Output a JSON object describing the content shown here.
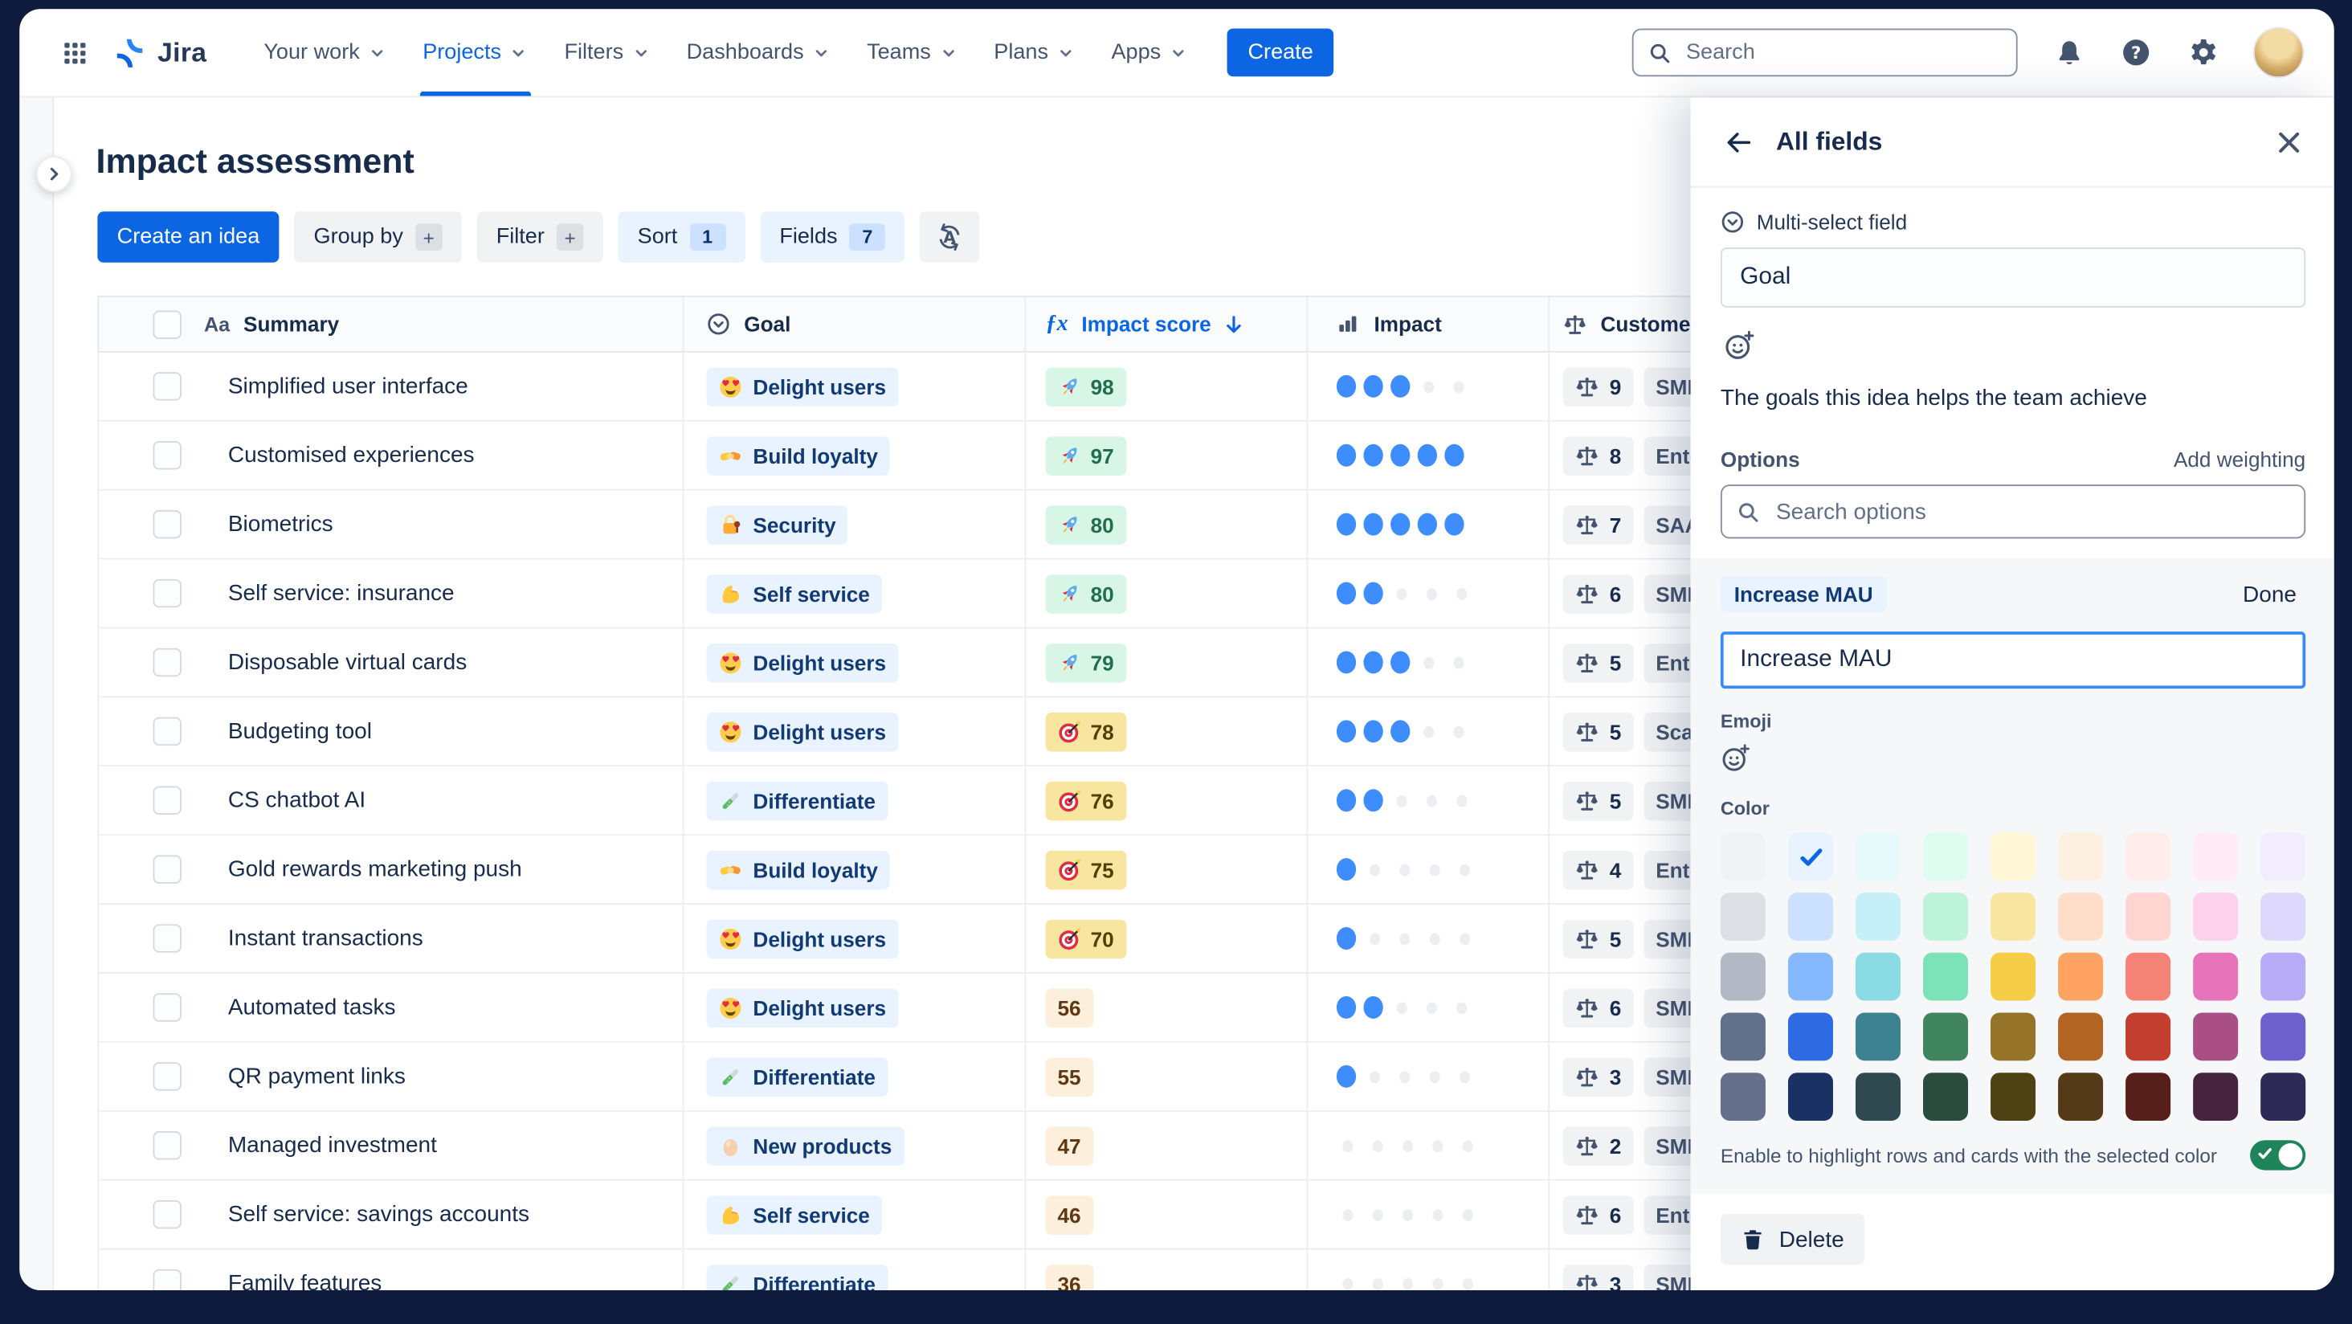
{
  "nav": {
    "logo_text": "Jira",
    "items": [
      {
        "label": "Your work"
      },
      {
        "label": "Projects",
        "active": true
      },
      {
        "label": "Filters"
      },
      {
        "label": "Dashboards"
      },
      {
        "label": "Teams"
      },
      {
        "label": "Plans"
      },
      {
        "label": "Apps"
      }
    ],
    "create_label": "Create",
    "search_placeholder": "Search"
  },
  "page_title": "Impact assessment",
  "toolbar": {
    "create_idea": "Create an idea",
    "group_by": "Group by",
    "filter": "Filter",
    "sort": "Sort",
    "sort_count": "1",
    "fields": "Fields",
    "fields_count": "7"
  },
  "table": {
    "columns": [
      {
        "label": "Summary",
        "icon": "aa-icon"
      },
      {
        "label": "Goal",
        "icon": "select-circle-icon"
      },
      {
        "label": "Impact score",
        "icon": "fx-icon",
        "sorted": "desc"
      },
      {
        "label": "Impact",
        "icon": "bars-icon"
      },
      {
        "label": "Customer",
        "icon": "scale-icon"
      }
    ],
    "rows": [
      {
        "summary": "Simplified user interface",
        "goal": "Delight users",
        "goal_emoji": "heart-eyes",
        "score": "98",
        "tier": "green",
        "score_emoji": "rocket",
        "impact": 3,
        "customer_count": "9",
        "customer": "SMB"
      },
      {
        "summary": "Customised experiences",
        "goal": "Build loyalty",
        "goal_emoji": "handshake",
        "score": "97",
        "tier": "green",
        "score_emoji": "rocket",
        "impact": 5,
        "customer_count": "8",
        "customer": "Enterprise"
      },
      {
        "summary": "Biometrics",
        "goal": "Security",
        "goal_emoji": "lock",
        "score": "80",
        "tier": "green",
        "score_emoji": "rocket",
        "impact": 5,
        "customer_count": "7",
        "customer": "SAAS"
      },
      {
        "summary": "Self service: insurance",
        "goal": "Self service",
        "goal_emoji": "biceps",
        "score": "80",
        "tier": "green",
        "score_emoji": "rocket",
        "impact": 2,
        "customer_count": "6",
        "customer": "SMB"
      },
      {
        "summary": "Disposable virtual cards",
        "goal": "Delight users",
        "goal_emoji": "heart-eyes",
        "score": "79",
        "tier": "green",
        "score_emoji": "rocket",
        "impact": 3,
        "customer_count": "5",
        "customer": "Enterprise"
      },
      {
        "summary": "Budgeting tool",
        "goal": "Delight users",
        "goal_emoji": "heart-eyes",
        "score": "78",
        "tier": "yellow",
        "score_emoji": "dart",
        "impact": 3,
        "customer_count": "5",
        "customer": "Scale"
      },
      {
        "summary": "CS chatbot AI",
        "goal": "Differentiate",
        "goal_emoji": "test-tube",
        "score": "76",
        "tier": "yellow",
        "score_emoji": "dart",
        "impact": 2,
        "customer_count": "5",
        "customer": "SMB"
      },
      {
        "summary": "Gold rewards marketing push",
        "goal": "Build loyalty",
        "goal_emoji": "handshake",
        "score": "75",
        "tier": "yellow",
        "score_emoji": "dart",
        "impact": 1,
        "customer_count": "4",
        "customer": "Enterprise"
      },
      {
        "summary": "Instant transactions",
        "goal": "Delight users",
        "goal_emoji": "heart-eyes",
        "score": "70",
        "tier": "yellow",
        "score_emoji": "dart",
        "impact": 1,
        "customer_count": "5",
        "customer": "SMB"
      },
      {
        "summary": "Automated tasks",
        "goal": "Delight users",
        "goal_emoji": "heart-eyes",
        "score": "56",
        "tier": "peach",
        "score_emoji": "",
        "impact": 2,
        "customer_count": "6",
        "customer": "SMB"
      },
      {
        "summary": "QR payment links",
        "goal": "Differentiate",
        "goal_emoji": "test-tube",
        "score": "55",
        "tier": "peach",
        "score_emoji": "",
        "impact": 1,
        "customer_count": "3",
        "customer": "SMB"
      },
      {
        "summary": "Managed investment",
        "goal": "New products",
        "goal_emoji": "egg",
        "score": "47",
        "tier": "peach",
        "score_emoji": "",
        "impact": 0,
        "customer_count": "2",
        "customer": "SMB"
      },
      {
        "summary": "Self service: savings accounts",
        "goal": "Self service",
        "goal_emoji": "biceps",
        "score": "46",
        "tier": "peach",
        "score_emoji": "",
        "impact": 0,
        "customer_count": "6",
        "customer": "Enterprise"
      },
      {
        "summary": "Family features",
        "goal": "Differentiate",
        "goal_emoji": "test-tube",
        "score": "36",
        "tier": "peach",
        "score_emoji": "",
        "impact": 0,
        "customer_count": "3",
        "customer": "SMB"
      }
    ]
  },
  "panel": {
    "back_label": "All fields",
    "field_type": "Multi-select field",
    "field_name_value": "Goal",
    "description": "The goals this idea helps the team achieve",
    "options_label": "Options",
    "add_weighting_label": "Add weighting",
    "search_placeholder": "Search options",
    "option_chip": "Increase MAU",
    "done_label": "Done",
    "option_input_value": "Increase MAU",
    "emoji_label": "Emoji",
    "color_label": "Color",
    "selected_swatch": {
      "row": 0,
      "col": 1
    },
    "selected_check_color": "#0C66E4",
    "palette": [
      [
        "#F1F2F4",
        "#E9F2FF",
        "#E6F9FB",
        "#DFFCF0",
        "#FFF7D6",
        "#FCF0E0",
        "#FFEDEB",
        "#FFECF5",
        "#F1EDFF"
      ],
      [
        "#DCDFE4",
        "#CCE0FF",
        "#C6F0F7",
        "#BDF3D9",
        "#F8E6A0",
        "#FEDEC8",
        "#FFD5D2",
        "#FDD0EC",
        "#DFD8FD"
      ],
      [
        "#B3B9C4",
        "#85B8FF",
        "#8BDBE5",
        "#7EE2B8",
        "#F5CD47",
        "#FEA362",
        "#F48276",
        "#E774BB",
        "#B8ACF6"
      ],
      [
        "#63708A",
        "#2E6BE2",
        "#3D8290",
        "#41855E",
        "#95742A",
        "#B26522",
        "#C23E2E",
        "#A94F85",
        "#6E61CE"
      ],
      [
        "#67708A",
        "#1A3263",
        "#2E4A50",
        "#2A4C3C",
        "#4E4214",
        "#553A18",
        "#571F19",
        "#47243E",
        "#2E2A58"
      ]
    ],
    "toggle_text": "Enable to highlight rows and cards with the selected color",
    "toggle_on": true,
    "toggle_color": "#1F845A",
    "delete_label": "Delete"
  }
}
